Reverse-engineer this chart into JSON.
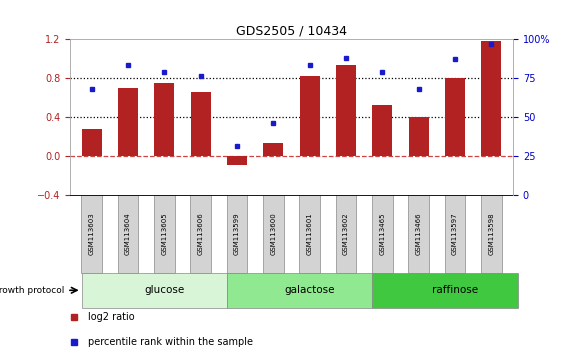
{
  "title": "GDS2505 / 10434",
  "samples": [
    "GSM113603",
    "GSM113604",
    "GSM113605",
    "GSM113606",
    "GSM113599",
    "GSM113600",
    "GSM113601",
    "GSM113602",
    "GSM113465",
    "GSM113466",
    "GSM113597",
    "GSM113598"
  ],
  "log2_ratio": [
    0.28,
    0.7,
    0.75,
    0.65,
    -0.1,
    0.13,
    0.82,
    0.93,
    0.52,
    0.4,
    0.8,
    1.18
  ],
  "pct_rank": [
    68,
    83,
    79,
    76,
    31,
    46,
    83,
    88,
    79,
    68,
    87,
    97
  ],
  "bar_color": "#b22222",
  "dot_color": "#1a1acd",
  "ylim_left": [
    -0.4,
    1.2
  ],
  "ylim_right": [
    0,
    100
  ],
  "yticks_left": [
    -0.4,
    0.0,
    0.4,
    0.8,
    1.2
  ],
  "yticks_right": [
    0,
    25,
    50,
    75,
    100
  ],
  "ytick_labels_right": [
    "0",
    "25",
    "50",
    "75",
    "100%"
  ],
  "zero_line_color": "#cc4444",
  "dotted_line_color": "#000000",
  "groups": [
    {
      "label": "glucose",
      "start": 0,
      "end": 4,
      "color": "#d8f5d8"
    },
    {
      "label": "galactose",
      "start": 4,
      "end": 8,
      "color": "#90e890"
    },
    {
      "label": "raffinose",
      "start": 8,
      "end": 12,
      "color": "#40c840"
    }
  ],
  "growth_protocol_label": "growth protocol",
  "legend_items": [
    {
      "label": "log2 ratio",
      "color": "#b22222"
    },
    {
      "label": "percentile rank within the sample",
      "color": "#1a1acd"
    }
  ],
  "bg_color": "#ffffff",
  "plot_bg_color": "#ffffff",
  "tick_label_color_left": "#b22222",
  "tick_label_color_right": "#0000cc",
  "bar_width": 0.55,
  "cell_color": "#d3d3d3",
  "cell_edge_color": "#888888",
  "spine_color": "#aaaaaa"
}
